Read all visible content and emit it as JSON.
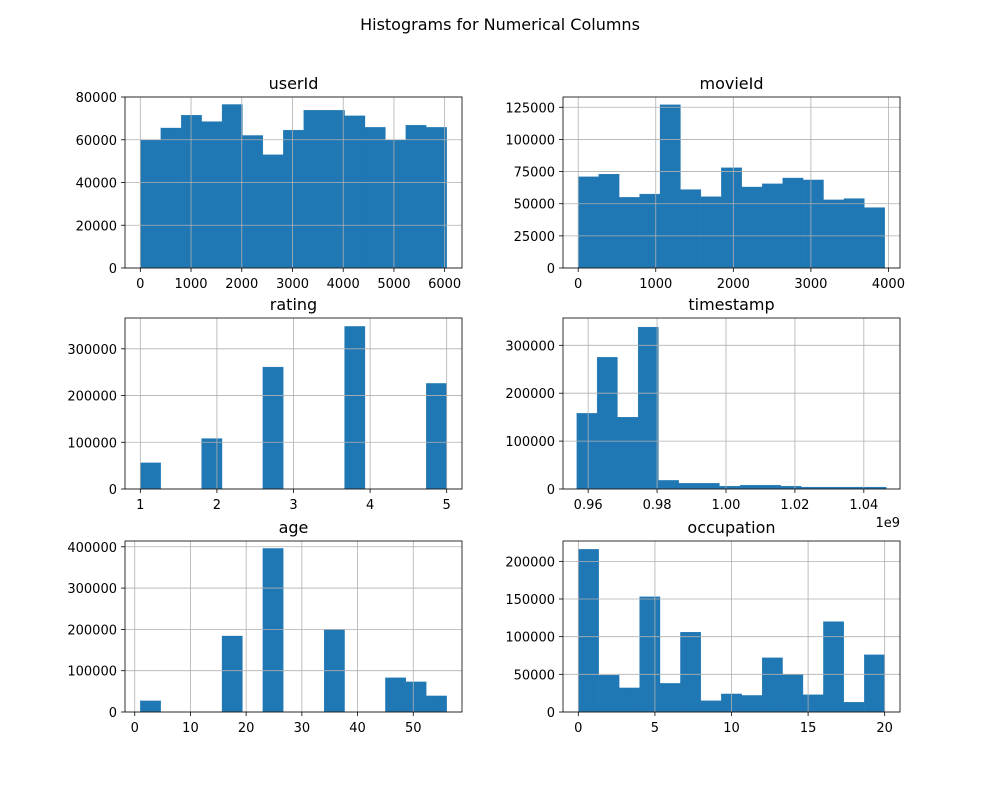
{
  "figure": {
    "title": "Histograms for Numerical Columns",
    "bar_color": "#1f77b4",
    "grid_color": "#b0b0b0"
  },
  "chart_data": [
    {
      "type": "bar",
      "id": "userId",
      "title": "userId",
      "bins": 15,
      "xlim": [
        -302,
        6342
      ],
      "ylim": [
        0,
        80000
      ],
      "xticks": [
        0,
        1000,
        2000,
        3000,
        4000,
        5000,
        6000
      ],
      "xtick_labels": [
        "0",
        "1000",
        "2000",
        "3000",
        "4000",
        "5000",
        "6000"
      ],
      "yticks": [
        0,
        20000,
        40000,
        60000,
        80000
      ],
      "ytick_labels": [
        "0",
        "20000",
        "40000",
        "60000",
        "80000"
      ],
      "bin_edges": [
        1,
        403.6,
        806.2,
        1208.8,
        1611.4,
        2014,
        2416.6,
        2819.2,
        3221.8,
        3624.4,
        4027,
        4429.6,
        4832.2,
        5234.8,
        5637.4,
        6040
      ],
      "values": [
        60000,
        65500,
        71500,
        68500,
        76500,
        62000,
        53000,
        64500,
        73800,
        73800,
        71200,
        65800,
        60000,
        66800,
        65800
      ]
    },
    {
      "type": "bar",
      "id": "movieId",
      "title": "movieId",
      "bins": 15,
      "xlim": [
        -196,
        4149
      ],
      "ylim": [
        0,
        133000
      ],
      "xticks": [
        0,
        1000,
        2000,
        3000,
        4000
      ],
      "xtick_labels": [
        "0",
        "1000",
        "2000",
        "3000",
        "4000"
      ],
      "yticks": [
        0,
        25000,
        50000,
        75000,
        100000,
        125000
      ],
      "ytick_labels": [
        "0",
        "25000",
        "50000",
        "75000",
        "100000",
        "125000"
      ],
      "bin_edges": [
        1,
        264.5,
        528,
        791.5,
        1055,
        1318.5,
        1582,
        1845.5,
        2109,
        2372.5,
        2636,
        2899.5,
        3163,
        3426.5,
        3690,
        3953
      ],
      "values": [
        71000,
        73000,
        55000,
        57500,
        127000,
        61000,
        55500,
        78000,
        63000,
        65500,
        70000,
        68500,
        53000,
        54000,
        47000
      ]
    },
    {
      "type": "bar",
      "id": "rating",
      "title": "rating",
      "bins": 15,
      "xlim": [
        0.8,
        5.2
      ],
      "ylim": [
        0,
        366000
      ],
      "xticks": [
        1,
        2,
        3,
        4,
        5
      ],
      "xtick_labels": [
        "1",
        "2",
        "3",
        "4",
        "5"
      ],
      "yticks": [
        0,
        100000,
        200000,
        300000
      ],
      "ytick_labels": [
        "0",
        "100000",
        "200000",
        "300000"
      ],
      "bin_edges": [
        1,
        1.2667,
        1.5333,
        1.8,
        2.0667,
        2.3333,
        2.6,
        2.8667,
        3.1333,
        3.4,
        3.6667,
        3.9333,
        4.2,
        4.4667,
        4.7333,
        5
      ],
      "values": [
        56000,
        0,
        0,
        108000,
        0,
        0,
        261000,
        0,
        0,
        0,
        348000,
        0,
        0,
        0,
        226000
      ]
    },
    {
      "type": "bar",
      "id": "timestamp",
      "title": "timestamp",
      "bins": 15,
      "xlim": [
        0.9527,
        1.0505
      ],
      "ylim": [
        0,
        357000
      ],
      "xticks": [
        0.96,
        0.98,
        1.0,
        1.02,
        1.04
      ],
      "xtick_labels": [
        "0.96",
        "0.98",
        "1.00",
        "1.02",
        "1.04"
      ],
      "yticks": [
        0,
        100000,
        200000,
        300000
      ],
      "ytick_labels": [
        "0",
        "100000",
        "200000",
        "300000"
      ],
      "offset_label": "1e9",
      "bin_edges": [
        0.9567,
        0.9626,
        0.9685,
        0.9745,
        0.9804,
        0.9863,
        0.9922,
        0.9981,
        1.0041,
        1.01,
        1.0159,
        1.0218,
        1.0278,
        1.0337,
        1.0396,
        1.0465
      ],
      "values": [
        158000,
        275000,
        150000,
        338000,
        18000,
        12000,
        12000,
        6000,
        8000,
        8000,
        6000,
        4000,
        4000,
        4000,
        4000
      ]
    },
    {
      "type": "bar",
      "id": "age",
      "title": "age",
      "bins": 15,
      "xlim": [
        -1.75,
        58.75
      ],
      "ylim": [
        0,
        414000
      ],
      "xticks": [
        0,
        10,
        20,
        30,
        40,
        50
      ],
      "xtick_labels": [
        "0",
        "10",
        "20",
        "30",
        "40",
        "50"
      ],
      "yticks": [
        0,
        100000,
        200000,
        300000,
        400000
      ],
      "ytick_labels": [
        "0",
        "100000",
        "200000",
        "300000",
        "400000"
      ],
      "bin_edges": [
        1,
        4.6667,
        8.3333,
        12,
        15.6667,
        19.3333,
        23,
        26.6667,
        30.3333,
        34,
        37.6667,
        41.3333,
        45,
        48.6667,
        52.3333,
        56
      ],
      "values": [
        27000,
        0,
        0,
        0,
        184000,
        0,
        396000,
        0,
        0,
        199000,
        0,
        0,
        83000,
        73000,
        39000
      ]
    },
    {
      "type": "bar",
      "id": "occupation",
      "title": "occupation",
      "bins": 15,
      "xlim": [
        -1,
        21
      ],
      "ylim": [
        0,
        227000
      ],
      "xticks": [
        0,
        5,
        10,
        15,
        20
      ],
      "xtick_labels": [
        "0",
        "5",
        "10",
        "15",
        "20"
      ],
      "yticks": [
        0,
        50000,
        100000,
        150000,
        200000
      ],
      "ytick_labels": [
        "0",
        "50000",
        "100000",
        "150000",
        "200000"
      ],
      "bin_edges": [
        0,
        1.3333,
        2.6667,
        4,
        5.3333,
        6.6667,
        8,
        9.3333,
        10.6667,
        12,
        13.3333,
        14.6667,
        16,
        17.3333,
        18.6667,
        20
      ],
      "values": [
        216000,
        49000,
        32000,
        153000,
        38000,
        106000,
        15000,
        24000,
        22000,
        72000,
        50000,
        23000,
        120000,
        13000,
        76000
      ]
    }
  ]
}
